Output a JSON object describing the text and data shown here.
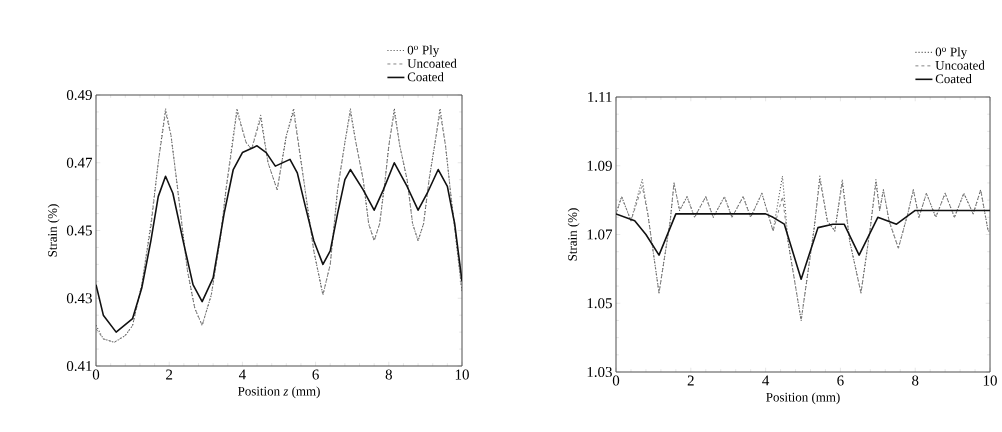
{
  "chart_data": [
    {
      "type": "line",
      "xlabel": "Position *z* (mm)",
      "ylabel": "Strain (%)",
      "xlim": [
        0,
        10
      ],
      "ylim": [
        0.41,
        0.49
      ],
      "xticks": [
        0,
        2,
        4,
        6,
        8,
        10
      ],
      "yticks": [
        0.41,
        0.43,
        0.45,
        0.47,
        0.49
      ],
      "legend": "top right",
      "grid": false,
      "series": [
        {
          "name": "0$^{o}$ Ply",
          "color": "#555555",
          "line_style": "dotted",
          "x": [
            0,
            0.2,
            0.5,
            0.8,
            1,
            1.25,
            1.5,
            1.7,
            1.9,
            2.05,
            2.2,
            2.5,
            2.7,
            2.9,
            3.15,
            3.4,
            3.55,
            3.7,
            3.85,
            4.1,
            4.25,
            4.5,
            4.7,
            4.95,
            5.2,
            5.4,
            5.7,
            5.95,
            6.2,
            6.4,
            6.6,
            6.8,
            6.95,
            7.1,
            7.3,
            7.45,
            7.6,
            7.75,
            7.9,
            8.0,
            8.15,
            8.3,
            8.5,
            8.65,
            8.8,
            8.95,
            9.1,
            9.25,
            9.4,
            9.55,
            9.7,
            9.85,
            10
          ],
          "values": [
            0.422,
            0.418,
            0.417,
            0.419,
            0.422,
            0.434,
            0.452,
            0.47,
            0.486,
            0.478,
            0.465,
            0.438,
            0.427,
            0.422,
            0.431,
            0.448,
            0.462,
            0.474,
            0.486,
            0.476,
            0.474,
            0.484,
            0.47,
            0.462,
            0.478,
            0.486,
            0.463,
            0.444,
            0.431,
            0.44,
            0.462,
            0.476,
            0.486,
            0.476,
            0.465,
            0.452,
            0.447,
            0.452,
            0.465,
            0.475,
            0.486,
            0.475,
            0.465,
            0.452,
            0.447,
            0.452,
            0.465,
            0.475,
            0.486,
            0.475,
            0.46,
            0.446,
            0.432
          ]
        },
        {
          "name": "Uncoated",
          "color": "#777777",
          "line_style": "dashed",
          "x": [
            0,
            0.2,
            0.5,
            0.8,
            1,
            1.25,
            1.5,
            1.7,
            1.9,
            2.05,
            2.2,
            2.5,
            2.7,
            2.9,
            3.15,
            3.4,
            3.55,
            3.7,
            3.85,
            4.1,
            4.25,
            4.5,
            4.7,
            4.95,
            5.2,
            5.4,
            5.7,
            5.95,
            6.2,
            6.4,
            6.6,
            6.8,
            6.95,
            7.1,
            7.3,
            7.45,
            7.6,
            7.75,
            7.9,
            8.0,
            8.15,
            8.3,
            8.5,
            8.65,
            8.8,
            8.95,
            9.1,
            9.25,
            9.4,
            9.55,
            9.7,
            9.85,
            10
          ],
          "values": [
            0.421,
            0.418,
            0.417,
            0.419,
            0.422,
            0.434,
            0.451,
            0.47,
            0.485,
            0.478,
            0.465,
            0.438,
            0.427,
            0.422,
            0.431,
            0.448,
            0.462,
            0.473,
            0.485,
            0.476,
            0.474,
            0.483,
            0.47,
            0.462,
            0.478,
            0.485,
            0.463,
            0.444,
            0.431,
            0.44,
            0.462,
            0.476,
            0.485,
            0.476,
            0.465,
            0.452,
            0.447,
            0.452,
            0.465,
            0.475,
            0.485,
            0.475,
            0.465,
            0.452,
            0.447,
            0.452,
            0.465,
            0.475,
            0.485,
            0.475,
            0.46,
            0.446,
            0.432
          ]
        },
        {
          "name": "Coated",
          "color": "#111111",
          "line_style": "solid",
          "x": [
            0,
            0.2,
            0.55,
            1,
            1.25,
            1.5,
            1.7,
            1.9,
            2.1,
            2.4,
            2.65,
            2.9,
            3.2,
            3.5,
            3.75,
            4.0,
            4.4,
            4.65,
            4.9,
            5.3,
            5.5,
            5.7,
            5.95,
            6.2,
            6.4,
            6.6,
            6.8,
            6.95,
            7.3,
            7.6,
            7.85,
            8.15,
            8.5,
            8.8,
            9.05,
            9.35,
            9.6,
            9.8,
            10
          ],
          "values": [
            0.434,
            0.425,
            0.42,
            0.424,
            0.433,
            0.447,
            0.46,
            0.466,
            0.461,
            0.446,
            0.434,
            0.429,
            0.436,
            0.455,
            0.468,
            0.473,
            0.475,
            0.473,
            0.469,
            0.471,
            0.467,
            0.458,
            0.447,
            0.44,
            0.444,
            0.455,
            0.465,
            0.468,
            0.462,
            0.456,
            0.462,
            0.47,
            0.463,
            0.456,
            0.461,
            0.468,
            0.463,
            0.452,
            0.435
          ]
        }
      ]
    },
    {
      "type": "line",
      "xlabel": "Position (mm)",
      "ylabel": "Strain (%)",
      "xlim": [
        0,
        10
      ],
      "ylim": [
        1.03,
        1.11
      ],
      "xticks": [
        0,
        2,
        4,
        6,
        8,
        10
      ],
      "yticks": [
        1.03,
        1.05,
        1.07,
        1.09,
        1.11
      ],
      "legend": "top right",
      "grid": false,
      "series": [
        {
          "name": "0$^{o}$ Ply",
          "color": "#555555",
          "line_style": "dotted",
          "x": [
            0,
            0.15,
            0.4,
            0.7,
            0.85,
            1.15,
            1.45,
            1.55,
            1.7,
            1.9,
            2.1,
            2.4,
            2.6,
            2.9,
            3.1,
            3.4,
            3.6,
            3.9,
            4.2,
            4.45,
            4.6,
            4.95,
            5.3,
            5.45,
            5.65,
            5.85,
            6.05,
            6.25,
            6.55,
            6.8,
            6.95,
            7.05,
            7.15,
            7.3,
            7.55,
            7.8,
            7.95,
            8.1,
            8.3,
            8.55,
            8.8,
            9.05,
            9.3,
            9.55,
            9.75,
            9.95,
            10
          ],
          "values": [
            1.076,
            1.081,
            1.074,
            1.086,
            1.076,
            1.053,
            1.074,
            1.085,
            1.077,
            1.081,
            1.075,
            1.081,
            1.075,
            1.081,
            1.075,
            1.081,
            1.075,
            1.082,
            1.071,
            1.087,
            1.068,
            1.045,
            1.072,
            1.087,
            1.074,
            1.071,
            1.086,
            1.068,
            1.053,
            1.072,
            1.086,
            1.077,
            1.083,
            1.074,
            1.066,
            1.076,
            1.083,
            1.075,
            1.082,
            1.075,
            1.082,
            1.075,
            1.082,
            1.076,
            1.083,
            1.071,
            1.071
          ]
        },
        {
          "name": "Uncoated",
          "color": "#777777",
          "line_style": "dashed",
          "x": [
            0,
            0.15,
            0.4,
            0.7,
            0.85,
            1.15,
            1.45,
            1.55,
            1.7,
            1.9,
            2.1,
            2.4,
            2.6,
            2.9,
            3.1,
            3.4,
            3.6,
            3.9,
            4.2,
            4.45,
            4.6,
            4.95,
            5.3,
            5.45,
            5.65,
            5.85,
            6.05,
            6.25,
            6.55,
            6.8,
            6.95,
            7.05,
            7.15,
            7.3,
            7.55,
            7.8,
            7.95,
            8.1,
            8.3,
            8.55,
            8.8,
            9.05,
            9.3,
            9.55,
            9.75,
            9.95,
            10
          ],
          "values": [
            1.076,
            1.081,
            1.074,
            1.084,
            1.076,
            1.053,
            1.074,
            1.085,
            1.077,
            1.081,
            1.075,
            1.081,
            1.075,
            1.081,
            1.075,
            1.081,
            1.075,
            1.082,
            1.071,
            1.081,
            1.068,
            1.045,
            1.072,
            1.086,
            1.074,
            1.071,
            1.085,
            1.068,
            1.053,
            1.072,
            1.085,
            1.077,
            1.083,
            1.074,
            1.066,
            1.076,
            1.083,
            1.075,
            1.082,
            1.075,
            1.082,
            1.075,
            1.082,
            1.076,
            1.083,
            1.071,
            1.071
          ]
        },
        {
          "name": "Coated",
          "color": "#111111",
          "line_style": "solid",
          "x": [
            0,
            0.5,
            0.8,
            1.15,
            1.6,
            2,
            3,
            4,
            4.2,
            4.5,
            4.95,
            5.4,
            5.8,
            6.1,
            6.5,
            7.0,
            7.5,
            8,
            9,
            10
          ],
          "values": [
            1.076,
            1.074,
            1.07,
            1.064,
            1.076,
            1.076,
            1.076,
            1.076,
            1.075,
            1.073,
            1.057,
            1.072,
            1.073,
            1.073,
            1.064,
            1.075,
            1.073,
            1.077,
            1.077,
            1.077
          ]
        }
      ]
    }
  ]
}
